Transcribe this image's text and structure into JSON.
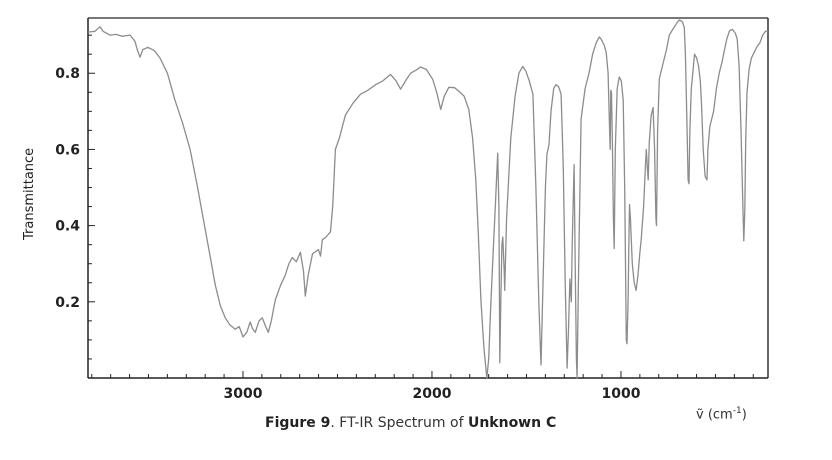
{
  "figure": {
    "caption_bold_prefix": "Figure 9",
    "caption_text": ". FT-IR Spectrum of ",
    "caption_bold_suffix": "Unknown C",
    "y_axis_label": "Transmittance",
    "x_axis_symbol": "ṽ",
    "x_axis_unit_open": " (cm",
    "x_axis_unit_sup": "-1",
    "x_axis_unit_close": ")"
  },
  "chart_data": {
    "type": "line",
    "title": "Figure 9. FT-IR Spectrum of Unknown C",
    "xlabel": "ṽ (cm-1)",
    "ylabel": "Transmittance",
    "xlim": [
      3820,
      222
    ],
    "x_reversed": true,
    "ylim": [
      0.0,
      0.945
    ],
    "x_ticks": [
      3000,
      2000,
      1000
    ],
    "x_minor_step": 100,
    "y_ticks": [
      0.2,
      0.4,
      0.6,
      0.8
    ],
    "y_tick_labels": [
      "0.2",
      "0.4",
      "0.6",
      "0.8"
    ],
    "y_minor_step": 0.05,
    "grid": false,
    "legend": null,
    "line_color": "#8c8c8c",
    "series": [
      {
        "name": "Unknown C",
        "points": [
          [
            3820,
            0.908
          ],
          [
            3783,
            0.91
          ],
          [
            3757,
            0.922
          ],
          [
            3740,
            0.91
          ],
          [
            3704,
            0.9
          ],
          [
            3672,
            0.902
          ],
          [
            3640,
            0.897
          ],
          [
            3598,
            0.9
          ],
          [
            3572,
            0.884
          ],
          [
            3558,
            0.86
          ],
          [
            3545,
            0.842
          ],
          [
            3530,
            0.862
          ],
          [
            3503,
            0.868
          ],
          [
            3470,
            0.86
          ],
          [
            3439,
            0.84
          ],
          [
            3400,
            0.8
          ],
          [
            3360,
            0.73
          ],
          [
            3320,
            0.67
          ],
          [
            3280,
            0.6
          ],
          [
            3240,
            0.5
          ],
          [
            3200,
            0.39
          ],
          [
            3170,
            0.31
          ],
          [
            3147,
            0.245
          ],
          [
            3120,
            0.19
          ],
          [
            3094,
            0.158
          ],
          [
            3070,
            0.14
          ],
          [
            3041,
            0.128
          ],
          [
            3020,
            0.135
          ],
          [
            3000,
            0.108
          ],
          [
            2980,
            0.12
          ],
          [
            2962,
            0.147
          ],
          [
            2950,
            0.13
          ],
          [
            2935,
            0.12
          ],
          [
            2915,
            0.15
          ],
          [
            2898,
            0.158
          ],
          [
            2880,
            0.135
          ],
          [
            2866,
            0.12
          ],
          [
            2850,
            0.15
          ],
          [
            2829,
            0.205
          ],
          [
            2800,
            0.245
          ],
          [
            2776,
            0.27
          ],
          [
            2757,
            0.3
          ],
          [
            2739,
            0.316
          ],
          [
            2718,
            0.305
          ],
          [
            2696,
            0.33
          ],
          [
            2680,
            0.28
          ],
          [
            2670,
            0.215
          ],
          [
            2655,
            0.27
          ],
          [
            2632,
            0.326
          ],
          [
            2601,
            0.337
          ],
          [
            2590,
            0.32
          ],
          [
            2580,
            0.363
          ],
          [
            2560,
            0.37
          ],
          [
            2537,
            0.384
          ],
          [
            2525,
            0.45
          ],
          [
            2511,
            0.6
          ],
          [
            2490,
            0.63
          ],
          [
            2458,
            0.69
          ],
          [
            2420,
            0.72
          ],
          [
            2378,
            0.745
          ],
          [
            2340,
            0.755
          ],
          [
            2298,
            0.77
          ],
          [
            2260,
            0.78
          ],
          [
            2219,
            0.797
          ],
          [
            2190,
            0.78
          ],
          [
            2166,
            0.758
          ],
          [
            2140,
            0.78
          ],
          [
            2113,
            0.8
          ],
          [
            2085,
            0.808
          ],
          [
            2060,
            0.816
          ],
          [
            2030,
            0.81
          ],
          [
            1996,
            0.784
          ],
          [
            1975,
            0.75
          ],
          [
            1954,
            0.705
          ],
          [
            1935,
            0.74
          ],
          [
            1911,
            0.763
          ],
          [
            1880,
            0.762
          ],
          [
            1858,
            0.753
          ],
          [
            1830,
            0.74
          ],
          [
            1805,
            0.705
          ],
          [
            1785,
            0.63
          ],
          [
            1768,
            0.52
          ],
          [
            1755,
            0.38
          ],
          [
            1741,
            0.205
          ],
          [
            1725,
            0.08
          ],
          [
            1710,
            0.0
          ],
          [
            1700,
            0.05
          ],
          [
            1690,
            0.18
          ],
          [
            1678,
            0.31
          ],
          [
            1665,
            0.45
          ],
          [
            1652,
            0.59
          ],
          [
            1646,
            0.45
          ],
          [
            1641,
            0.04
          ],
          [
            1636,
            0.2
          ],
          [
            1630,
            0.35
          ],
          [
            1625,
            0.37
          ],
          [
            1618,
            0.28
          ],
          [
            1615,
            0.23
          ],
          [
            1605,
            0.42
          ],
          [
            1583,
            0.63
          ],
          [
            1560,
            0.74
          ],
          [
            1540,
            0.8
          ],
          [
            1520,
            0.818
          ],
          [
            1503,
            0.805
          ],
          [
            1485,
            0.78
          ],
          [
            1466,
            0.745
          ],
          [
            1450,
            0.5
          ],
          [
            1435,
            0.2
          ],
          [
            1423,
            0.034
          ],
          [
            1410,
            0.3
          ],
          [
            1400,
            0.5
          ],
          [
            1392,
            0.587
          ],
          [
            1386,
            0.6
          ],
          [
            1381,
            0.613
          ],
          [
            1370,
            0.7
          ],
          [
            1356,
            0.76
          ],
          [
            1344,
            0.77
          ],
          [
            1330,
            0.765
          ],
          [
            1317,
            0.745
          ],
          [
            1305,
            0.55
          ],
          [
            1295,
            0.25
          ],
          [
            1285,
            0.026
          ],
          [
            1278,
            0.12
          ],
          [
            1270,
            0.26
          ],
          [
            1263,
            0.2
          ],
          [
            1258,
            0.35
          ],
          [
            1248,
            0.56
          ],
          [
            1242,
            0.3
          ],
          [
            1236,
            0.05
          ],
          [
            1232,
            0.0
          ],
          [
            1225,
            0.25
          ],
          [
            1211,
            0.68
          ],
          [
            1190,
            0.76
          ],
          [
            1169,
            0.8
          ],
          [
            1150,
            0.85
          ],
          [
            1131,
            0.88
          ],
          [
            1115,
            0.895
          ],
          [
            1105,
            0.89
          ],
          [
            1090,
            0.875
          ],
          [
            1078,
            0.855
          ],
          [
            1068,
            0.8
          ],
          [
            1060,
            0.65
          ],
          [
            1057,
            0.6
          ],
          [
            1054,
            0.755
          ],
          [
            1050,
            0.75
          ],
          [
            1045,
            0.6
          ],
          [
            1040,
            0.42
          ],
          [
            1036,
            0.34
          ],
          [
            1030,
            0.6
          ],
          [
            1020,
            0.76
          ],
          [
            1009,
            0.79
          ],
          [
            998,
            0.78
          ],
          [
            988,
            0.73
          ],
          [
            980,
            0.5
          ],
          [
            975,
            0.25
          ],
          [
            972,
            0.1
          ],
          [
            968,
            0.09
          ],
          [
            962,
            0.205
          ],
          [
            958,
            0.36
          ],
          [
            955,
            0.455
          ],
          [
            950,
            0.42
          ],
          [
            940,
            0.3
          ],
          [
            930,
            0.25
          ],
          [
            920,
            0.23
          ],
          [
            910,
            0.27
          ],
          [
            900,
            0.33
          ],
          [
            893,
            0.363
          ],
          [
            880,
            0.45
          ],
          [
            870,
            0.56
          ],
          [
            866,
            0.6
          ],
          [
            860,
            0.55
          ],
          [
            856,
            0.52
          ],
          [
            850,
            0.62
          ],
          [
            840,
            0.69
          ],
          [
            830,
            0.71
          ],
          [
            822,
            0.6
          ],
          [
            815,
            0.42
          ],
          [
            812,
            0.4
          ],
          [
            806,
            0.65
          ],
          [
            797,
            0.785
          ],
          [
            780,
            0.82
          ],
          [
            760,
            0.86
          ],
          [
            744,
            0.9
          ],
          [
            720,
            0.92
          ],
          [
            700,
            0.935
          ],
          [
            691,
            0.94
          ],
          [
            675,
            0.935
          ],
          [
            665,
            0.92
          ],
          [
            659,
            0.85
          ],
          [
            650,
            0.65
          ],
          [
            645,
            0.52
          ],
          [
            640,
            0.51
          ],
          [
            635,
            0.65
          ],
          [
            628,
            0.76
          ],
          [
            620,
            0.8
          ],
          [
            611,
            0.85
          ],
          [
            600,
            0.84
          ],
          [
            590,
            0.82
          ],
          [
            580,
            0.78
          ],
          [
            574,
            0.72
          ],
          [
            565,
            0.6
          ],
          [
            555,
            0.53
          ],
          [
            545,
            0.52
          ],
          [
            540,
            0.6
          ],
          [
            530,
            0.66
          ],
          [
            520,
            0.68
          ],
          [
            510,
            0.7
          ],
          [
            495,
            0.76
          ],
          [
            480,
            0.8
          ],
          [
            465,
            0.83
          ],
          [
            455,
            0.855
          ],
          [
            440,
            0.89
          ],
          [
            425,
            0.912
          ],
          [
            410,
            0.915
          ],
          [
            395,
            0.905
          ],
          [
            385,
            0.89
          ],
          [
            375,
            0.82
          ],
          [
            365,
            0.65
          ],
          [
            355,
            0.45
          ],
          [
            350,
            0.36
          ],
          [
            345,
            0.44
          ],
          [
            340,
            0.62
          ],
          [
            333,
            0.75
          ],
          [
            322,
            0.81
          ],
          [
            310,
            0.84
          ],
          [
            295,
            0.855
          ],
          [
            280,
            0.87
          ],
          [
            265,
            0.88
          ],
          [
            250,
            0.9
          ],
          [
            235,
            0.91
          ],
          [
            222,
            0.91
          ]
        ]
      }
    ],
    "annotations": []
  }
}
